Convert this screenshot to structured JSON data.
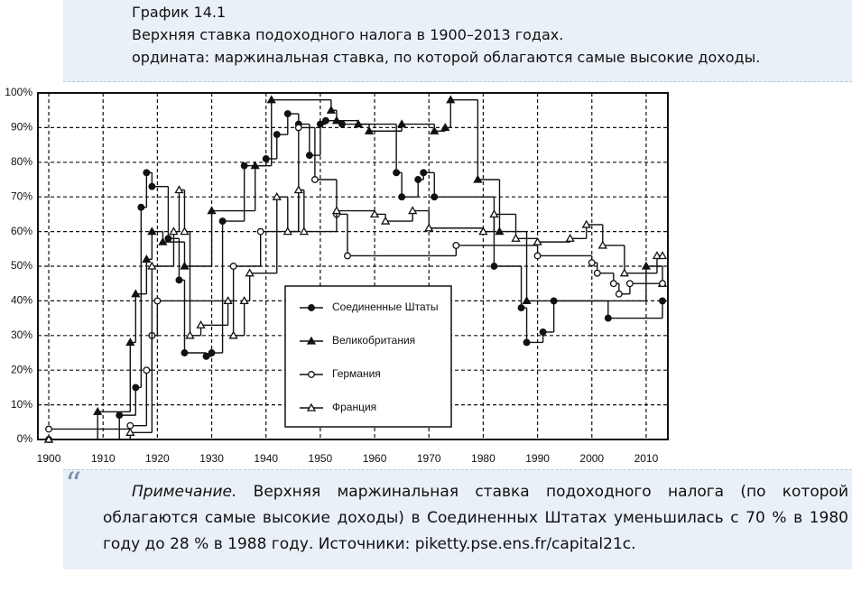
{
  "header": {
    "title": "График 14.1",
    "subtitle": "Верхняя ставка подоходного налога в 1900–2013 годах.",
    "axis_note": "ордината: маржинальная ставка, по которой облагаются самые высокие доходы."
  },
  "note": {
    "label": "Примечание.",
    "text": "Верхняя маржинальная ставка подоходного налога (по которой облагаются самые высокие доходы) в Соединенных Штатах уменьшилась с 70 % в 1980 году до 28 % в 1988 году. Источники: piketty.pse.ens.fr/capital21c."
  },
  "chart_data": {
    "type": "line",
    "step": true,
    "grid": true,
    "legend": "center",
    "xlim": [
      1898,
      2014
    ],
    "xticks": [
      1900,
      1910,
      1920,
      1930,
      1940,
      1950,
      1960,
      1970,
      1980,
      1990,
      2000,
      2010
    ],
    "ylim": [
      0,
      100
    ],
    "yticks": [
      {
        "value": 0,
        "label": "0%"
      },
      {
        "value": 10,
        "label": "10%"
      },
      {
        "value": 20,
        "label": "20%"
      },
      {
        "value": 30,
        "label": "30%"
      },
      {
        "value": 40,
        "label": "40%"
      },
      {
        "value": 50,
        "label": "50%"
      },
      {
        "value": 60,
        "label": "60%"
      },
      {
        "value": 70,
        "label": "70%"
      },
      {
        "value": 80,
        "label": "80%"
      },
      {
        "value": 90,
        "label": "90%"
      },
      {
        "value": 100,
        "label": "100%"
      }
    ],
    "series": [
      {
        "name": "Соединенные Штаты",
        "color": "#111111",
        "marker": "circle-filled",
        "x": [
          1900,
          1913,
          1916,
          1917,
          1918,
          1919,
          1922,
          1924,
          1925,
          1929,
          1930,
          1932,
          1936,
          1940,
          1942,
          1944,
          1946,
          1948,
          1950,
          1951,
          1954,
          1964,
          1965,
          1968,
          1969,
          1971,
          1982,
          1987,
          1988,
          1991,
          1993,
          2003,
          2013
        ],
        "values": [
          0,
          7,
          15,
          67,
          77,
          73,
          58,
          46,
          25,
          24,
          25,
          63,
          79,
          81,
          88,
          94,
          91,
          82,
          91,
          92,
          91,
          77,
          70,
          75,
          77,
          70,
          50,
          38,
          28,
          31,
          40,
          35,
          40
        ]
      },
      {
        "name": "Великобритания",
        "color": "#111111",
        "marker": "triangle-filled",
        "x": [
          1900,
          1909,
          1915,
          1916,
          1918,
          1919,
          1921,
          1925,
          1930,
          1938,
          1941,
          1952,
          1953,
          1957,
          1959,
          1965,
          1971,
          1973,
          1974,
          1979,
          1983,
          1988,
          2010,
          2013
        ],
        "values": [
          0,
          8,
          28,
          42,
          52,
          60,
          57,
          50,
          66,
          79,
          98,
          95,
          92,
          91,
          89,
          91,
          89,
          90,
          98,
          75,
          60,
          40,
          50,
          45
        ]
      },
      {
        "name": "Германия",
        "color": "#111111",
        "marker": "circle-open",
        "x": [
          1900,
          1915,
          1918,
          1919,
          1920,
          1934,
          1939,
          1946,
          1949,
          1953,
          1955,
          1975,
          1990,
          2000,
          2001,
          2004,
          2005,
          2007,
          2013
        ],
        "values": [
          3,
          4,
          20,
          30,
          40,
          50,
          60,
          90,
          75,
          65,
          53,
          56,
          53,
          51,
          48,
          45,
          42,
          45,
          45
        ]
      },
      {
        "name": "Франция",
        "color": "#111111",
        "marker": "triangle-open",
        "x": [
          1900,
          1915,
          1919,
          1923,
          1924,
          1925,
          1926,
          1928,
          1933,
          1934,
          1936,
          1937,
          1942,
          1944,
          1946,
          1947,
          1953,
          1960,
          1962,
          1967,
          1970,
          1980,
          1982,
          1986,
          1990,
          1996,
          1999,
          2002,
          2006,
          2012,
          2013
        ],
        "values": [
          0,
          2,
          50,
          60,
          72,
          60,
          30,
          33,
          40,
          30,
          40,
          48,
          70,
          60,
          72,
          60,
          66,
          65,
          63,
          66,
          61,
          60,
          65,
          58,
          57,
          58,
          62,
          56,
          48,
          53,
          53
        ]
      }
    ]
  }
}
